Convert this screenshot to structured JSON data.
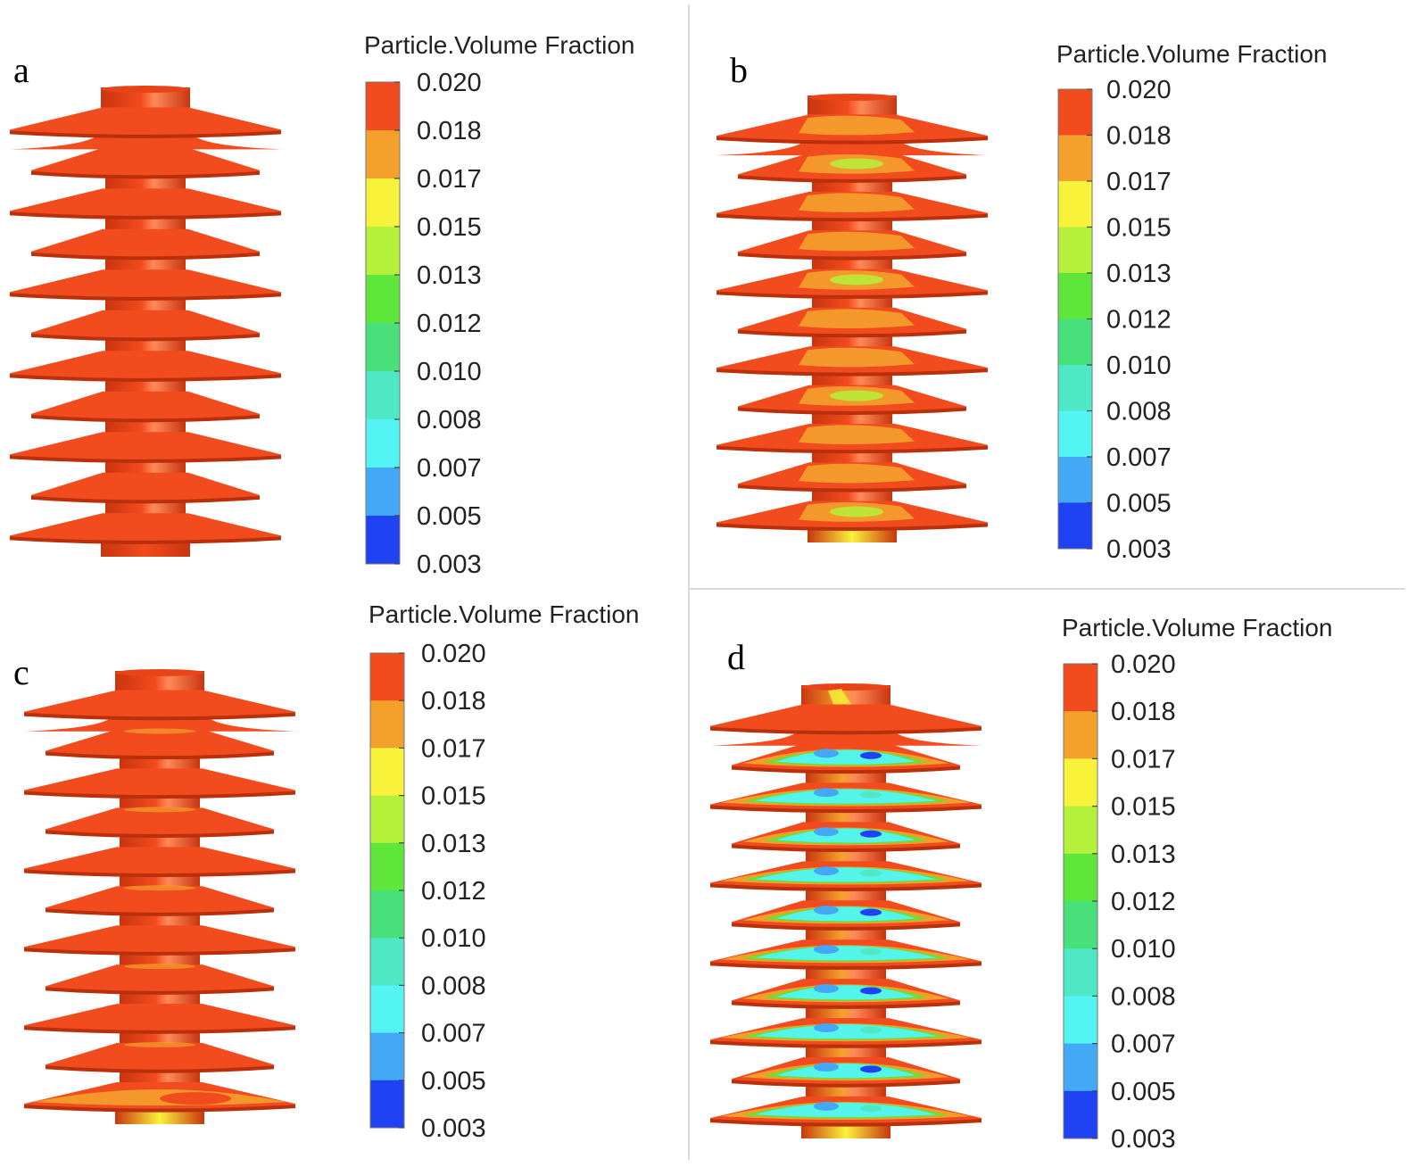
{
  "legend_title": "Particle.Volume Fraction",
  "ticks": [
    "0.020",
    "0.018",
    "0.017",
    "0.015",
    "0.013",
    "0.012",
    "0.010",
    "0.008",
    "0.007",
    "0.005",
    "0.003"
  ],
  "band_colors": [
    "#f24b1e",
    "#f4a12c",
    "#f8f23a",
    "#b5f03a",
    "#5ee63a",
    "#48e07a",
    "#4fe8c4",
    "#54f4f4",
    "#43a8f6",
    "#1f42f2"
  ],
  "panels": [
    {
      "label": "a",
      "wash": "none"
    },
    {
      "label": "b",
      "wash": "mild"
    },
    {
      "label": "c",
      "wash": "bottom"
    },
    {
      "label": "d",
      "wash": "strong"
    }
  ]
}
